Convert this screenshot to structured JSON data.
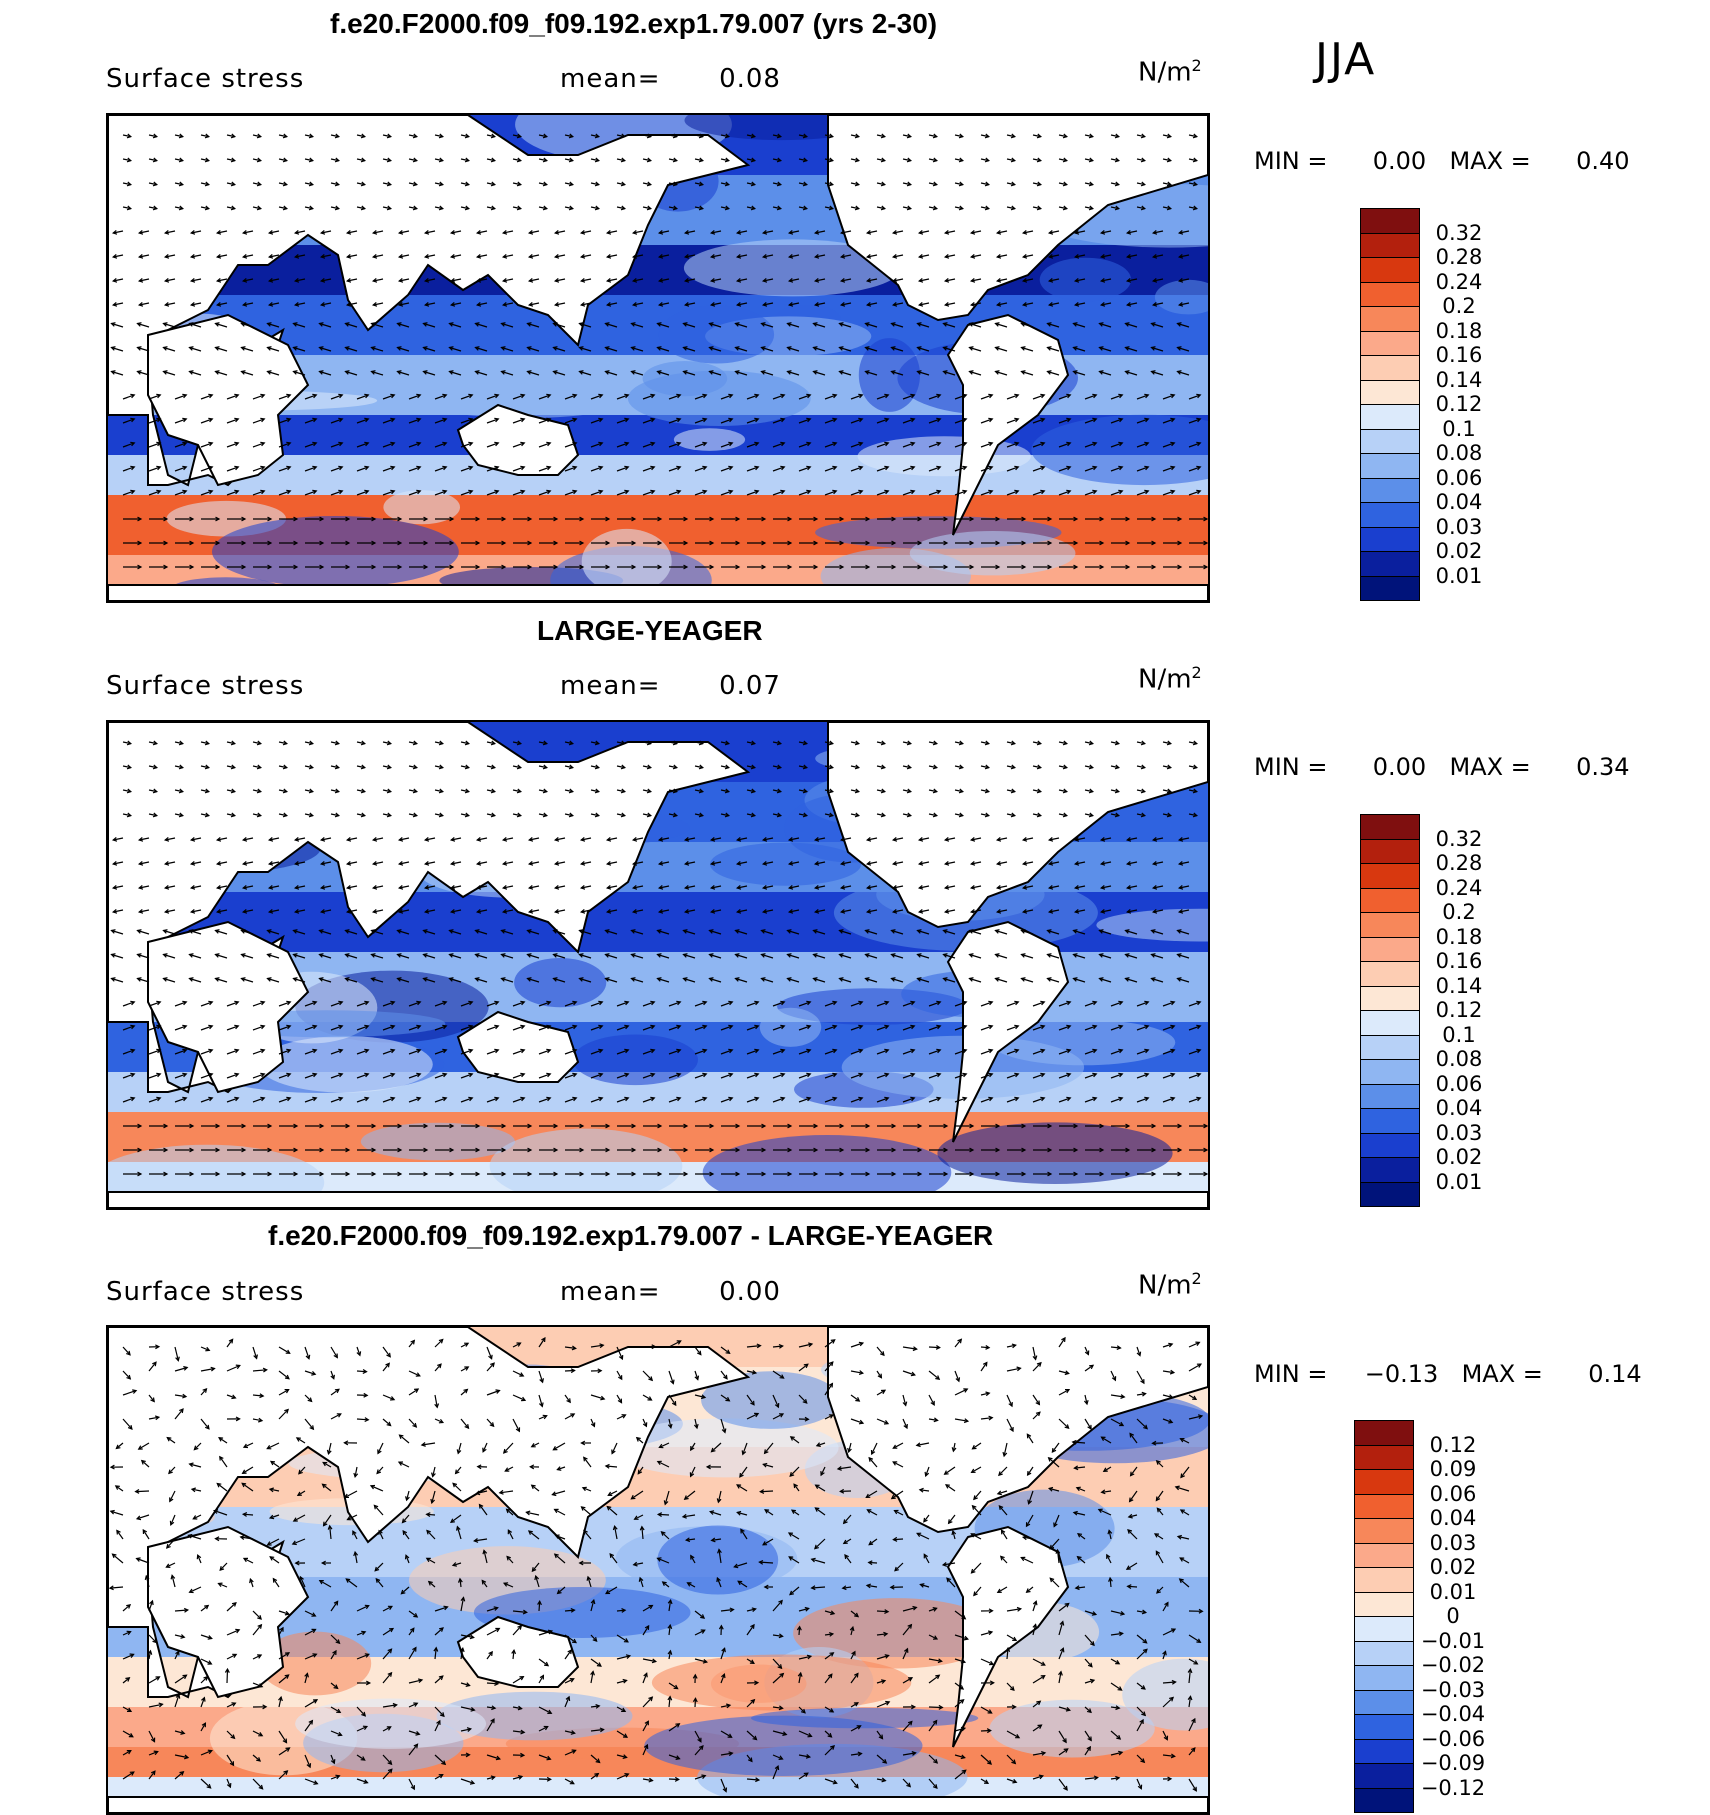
{
  "season": "JJA",
  "units": "N/m",
  "units_exp": "2",
  "panels": [
    {
      "title": "f.e20.F2000.f09_f09.192.exp1.79.007 (yrs 2-30)",
      "variable": "Surface stress",
      "mean_label": "mean=",
      "mean_value": "0.08",
      "min_label": "MIN =",
      "min_value": "0.00",
      "max_label": "MAX =",
      "max_value": "0.40",
      "colorbar": [
        "0.32",
        "0.28",
        "0.24",
        "0.2",
        "0.18",
        "0.16",
        "0.14",
        "0.12",
        "0.1",
        "0.08",
        "0.06",
        "0.04",
        "0.03",
        "0.02",
        "0.01"
      ],
      "colors": [
        "#7f0f0f",
        "#b3200d",
        "#d8380f",
        "#f0602f",
        "#f7875a",
        "#fba98a",
        "#fdcdb3",
        "#fde7d5",
        "#dceafb",
        "#b7d1f7",
        "#8fb6f2",
        "#5c8fe9",
        "#2f63e0",
        "#1a3fcf",
        "#0a1f9e",
        "#00137a"
      ],
      "map_style": "mean1"
    },
    {
      "title": "LARGE-YEAGER",
      "variable": "Surface stress",
      "mean_label": "mean=",
      "mean_value": "0.07",
      "min_label": "MIN =",
      "min_value": "0.00",
      "max_label": "MAX =",
      "max_value": "0.34",
      "colorbar": [
        "0.32",
        "0.28",
        "0.24",
        "0.2",
        "0.18",
        "0.16",
        "0.14",
        "0.12",
        "0.1",
        "0.08",
        "0.06",
        "0.04",
        "0.03",
        "0.02",
        "0.01"
      ],
      "colors": [
        "#7f0f0f",
        "#b3200d",
        "#d8380f",
        "#f0602f",
        "#f7875a",
        "#fba98a",
        "#fdcdb3",
        "#fde7d5",
        "#dceafb",
        "#b7d1f7",
        "#8fb6f2",
        "#5c8fe9",
        "#2f63e0",
        "#1a3fcf",
        "#0a1f9e",
        "#00137a"
      ],
      "map_style": "mean2"
    },
    {
      "title": "f.e20.F2000.f09_f09.192.exp1.79.007 - LARGE-YEAGER",
      "variable": "Surface stress",
      "mean_label": "mean=",
      "mean_value": "0.00",
      "min_label": "MIN =",
      "min_value": "−0.13",
      "max_label": "MAX =",
      "max_value": "0.14",
      "colorbar": [
        "0.12",
        "0.09",
        "0.06",
        "0.04",
        "0.03",
        "0.02",
        "0.01",
        "0",
        "−0.01",
        "−0.02",
        "−0.03",
        "−0.04",
        "−0.06",
        "−0.09",
        "−0.12"
      ],
      "colors": [
        "#7f0f0f",
        "#b3200d",
        "#d8380f",
        "#f0602f",
        "#f7875a",
        "#fba98a",
        "#fdcdb3",
        "#fde7d5",
        "#dceafb",
        "#b7d1f7",
        "#8fb6f2",
        "#5c8fe9",
        "#2f63e0",
        "#1a3fcf",
        "#0a1f9e",
        "#00137a"
      ],
      "map_style": "diff"
    }
  ]
}
